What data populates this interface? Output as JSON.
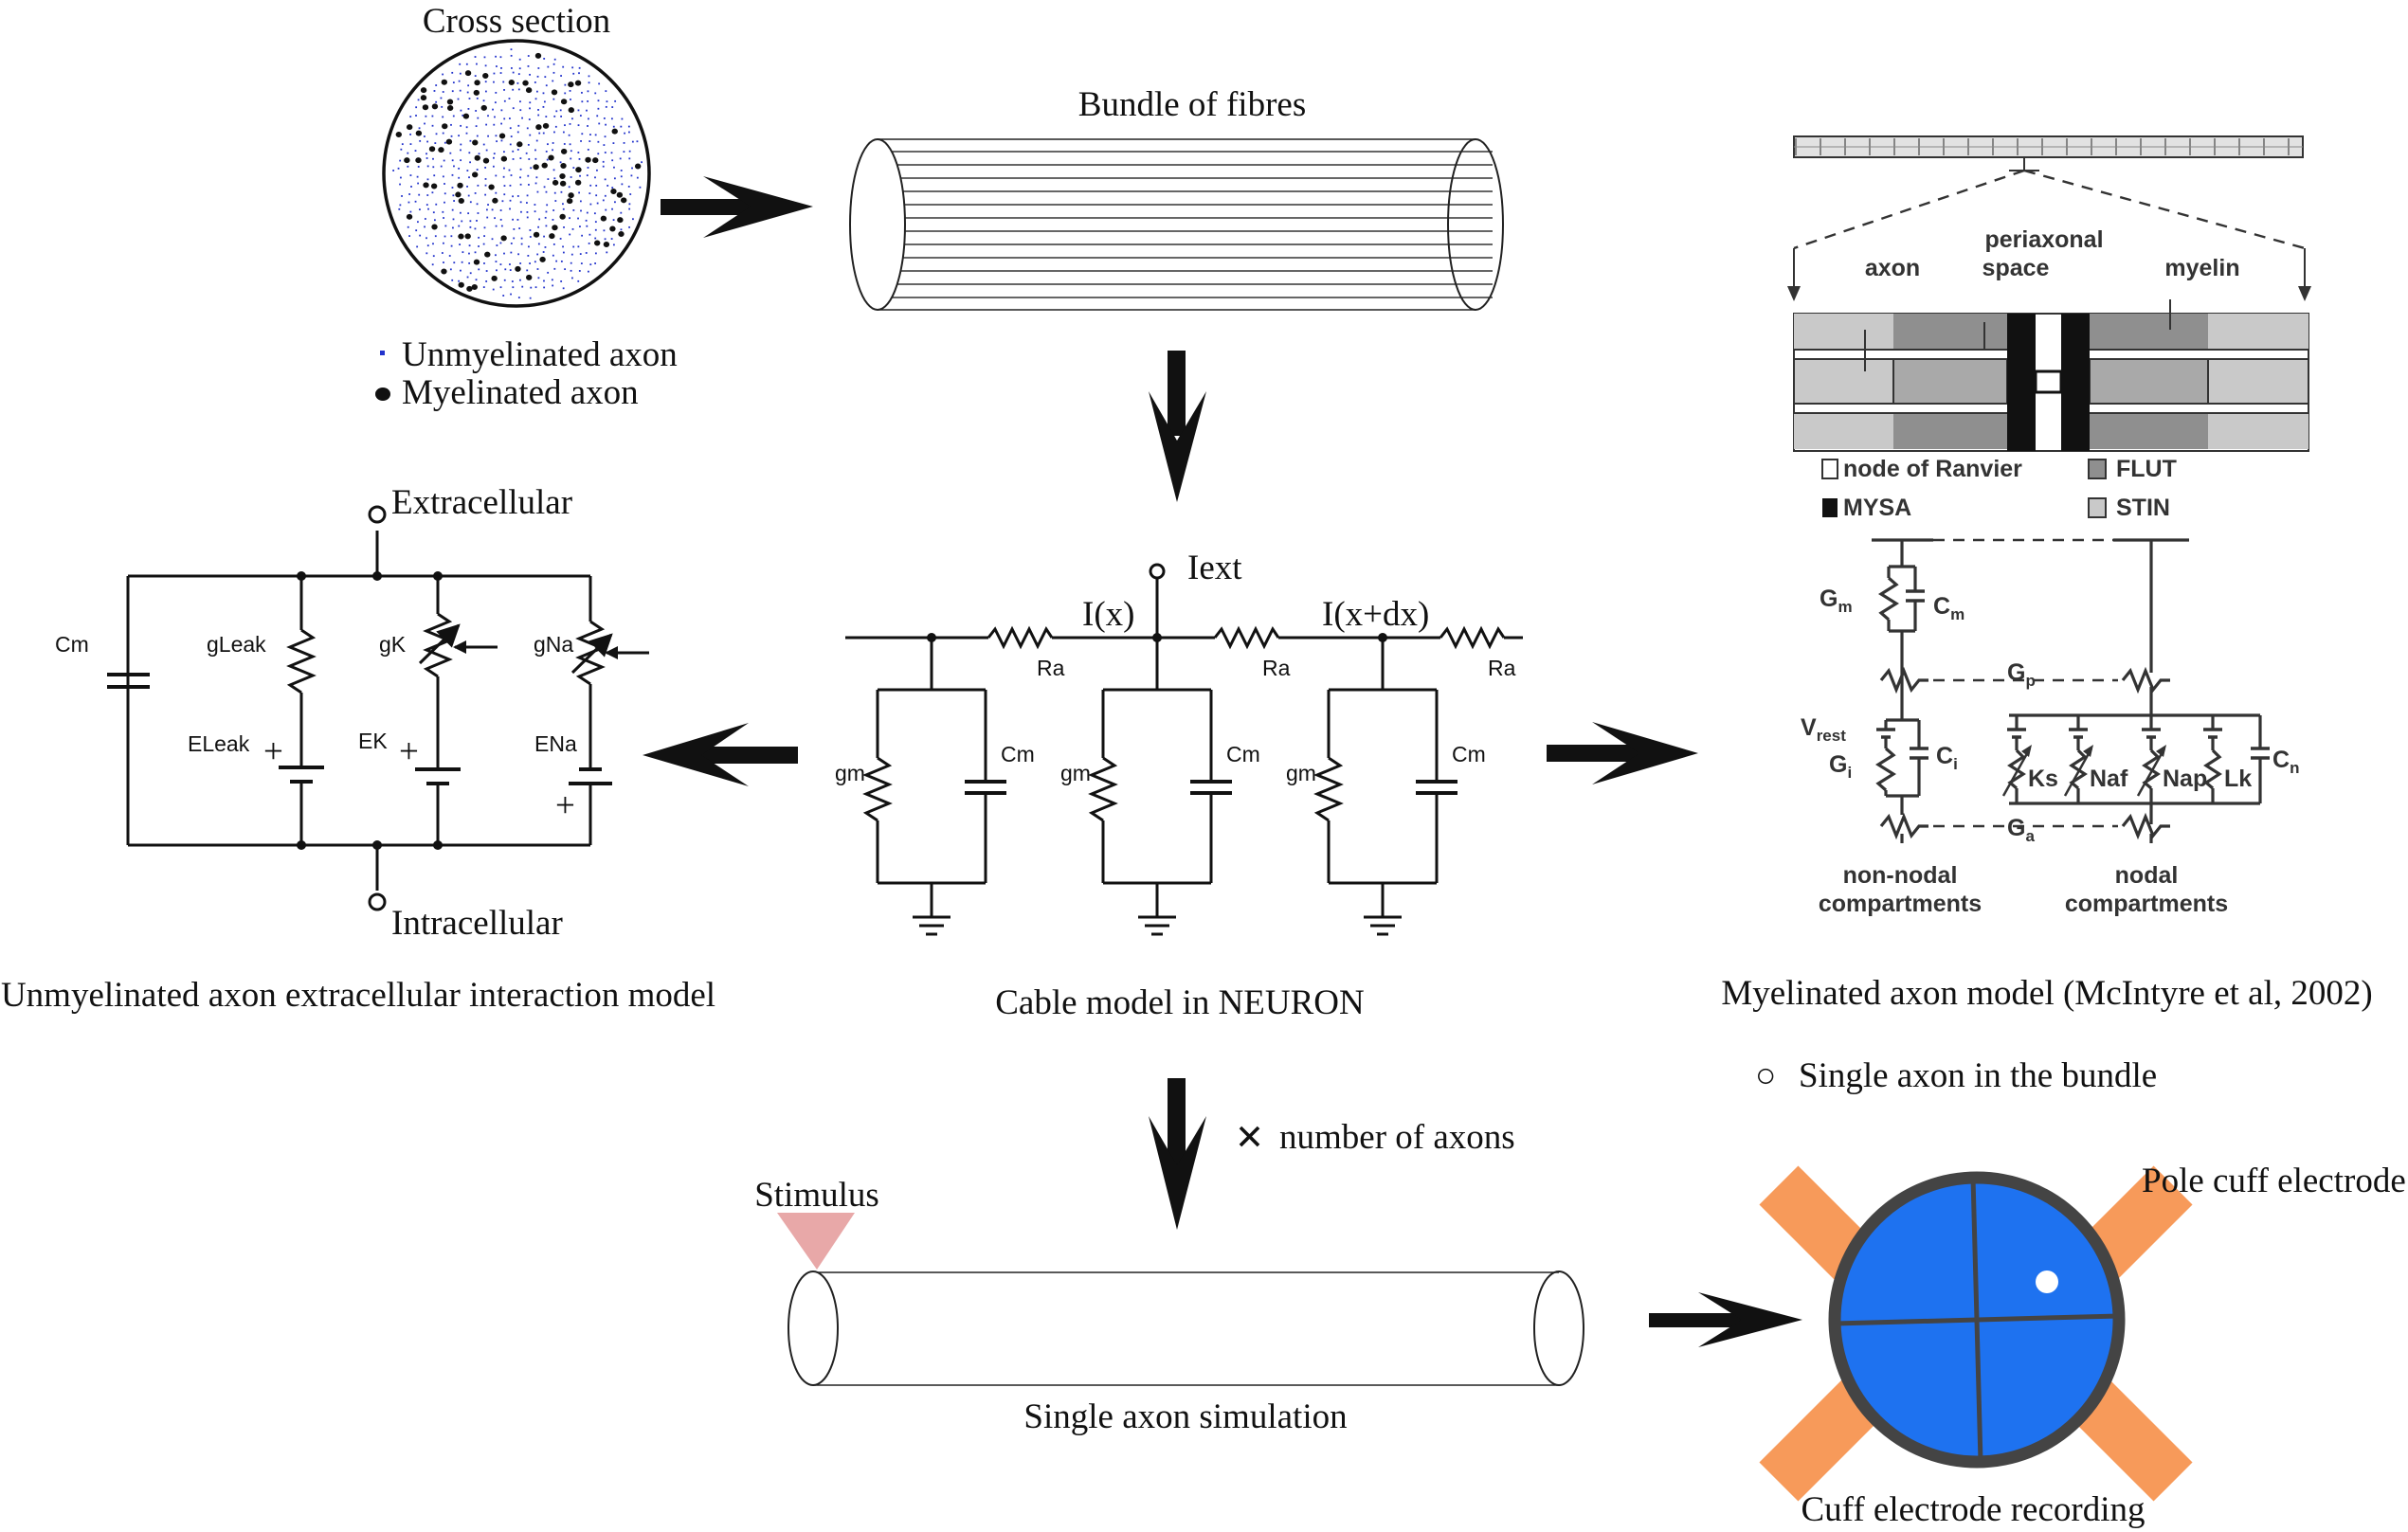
{
  "cross_section": {
    "title": "Cross section",
    "legend_unmyelinated": "Unmyelinated axon",
    "legend_myelinated": "Myelinated axon"
  },
  "bundle": {
    "title": "Bundle of fibres"
  },
  "unmyelinated_model": {
    "caption": "Unmyelinated axon extracellular interaction model",
    "extracellular": "Extracellular",
    "intracellular": "Intracellular",
    "cm": "Cm",
    "gleak": "gLeak",
    "gk": "gK",
    "gna": "gNa",
    "eleak": "ELeak",
    "ek": "EK",
    "ena": "ENa",
    "plus": "+"
  },
  "cable_model": {
    "caption": "Cable model in NEURON",
    "iext": "Iext",
    "ix": "I(x)",
    "ixdx": "I(x+dx)",
    "ra": "Ra",
    "gm": "gm",
    "cm": "Cm"
  },
  "myelinated_model": {
    "caption": "Myelinated axon model (McIntyre et al, 2002)",
    "axon": "axon",
    "periaxonal_1": "periaxonal",
    "periaxonal_2": "space",
    "myelin": "myelin",
    "node_of_ranvier": "node of Ranvier",
    "flut": "FLUT",
    "mysa": "MYSA",
    "stin": "STIN",
    "g_letter": "G",
    "c_letter": "C",
    "v_letter": "V",
    "sub_m": "m",
    "sub_p": "p",
    "sub_rest": "rest",
    "sub_i": "i",
    "sub_a": "a",
    "sub_n": "n",
    "ks": "Ks",
    "naf": "Naf",
    "nap": "Nap",
    "lk": "Lk",
    "non_nodal_1": "non-nodal",
    "non_nodal_2": "compartments",
    "nodal_1": "nodal",
    "nodal_2": "compartments"
  },
  "multiplier": {
    "symbol": "✕",
    "text": "number of axons"
  },
  "single_axon": {
    "stimulus": "Stimulus",
    "caption": "Single axon simulation"
  },
  "cuff": {
    "legend_symbol": "○",
    "legend": "Single axon in the bundle",
    "pole_label": "Pole cuff electrode",
    "caption": "Cuff electrode recording"
  },
  "colors": {
    "cuff_blue": "#1e72f0",
    "cuff_orange": "#f79a5a",
    "stimulus_pink": "#e8a8a8",
    "unmyelinated_dot": "#2233cc",
    "myelin_dark": "#8f8f8f",
    "myelin_mid": "#a9a9a9",
    "myelin_light": "#c9c9c9"
  }
}
